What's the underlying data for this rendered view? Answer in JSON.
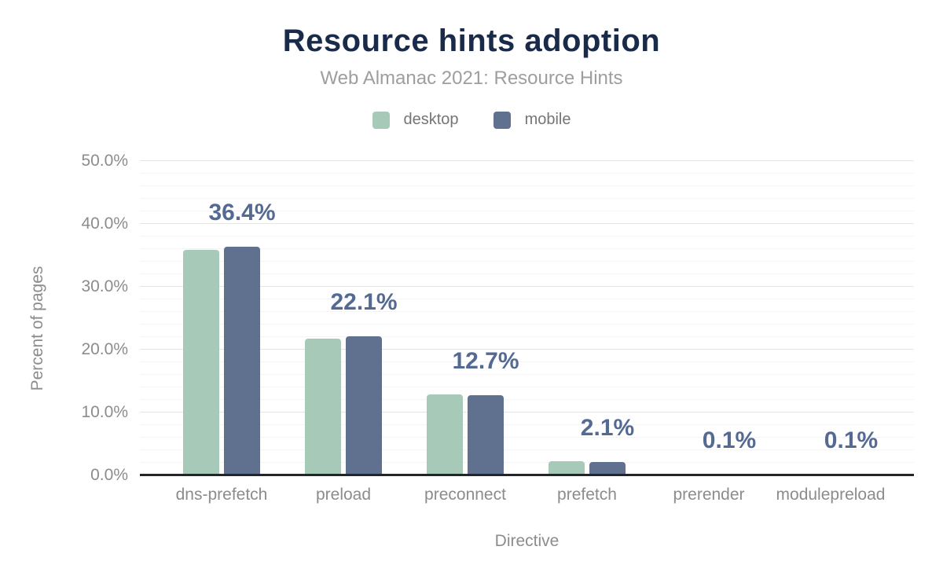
{
  "chart": {
    "title": "Resource hints adoption",
    "subtitle": "Web Almanac 2021: Resource Hints",
    "x_axis_title": "Directive",
    "y_axis_title": "Percent of pages"
  },
  "legend": {
    "items": [
      {
        "label": "desktop",
        "color": "#a7c9b8"
      },
      {
        "label": "mobile",
        "color": "#5f718f"
      }
    ]
  },
  "chart_data": {
    "type": "bar",
    "title": "Resource hints adoption",
    "subtitle": "Web Almanac 2021: Resource Hints",
    "categories": [
      "dns-prefetch",
      "preload",
      "preconnect",
      "prefetch",
      "prerender",
      "modulepreload"
    ],
    "series": [
      {
        "name": "desktop",
        "color": "#a7c9b8",
        "values": [
          35.9,
          21.7,
          12.9,
          2.3,
          0.1,
          0.1
        ]
      },
      {
        "name": "mobile",
        "color": "#5f718f",
        "values": [
          36.4,
          22.1,
          12.7,
          2.1,
          0.1,
          0.1
        ]
      }
    ],
    "value_labels": [
      "36.4%",
      "22.1%",
      "12.7%",
      "2.1%",
      "0.1%",
      "0.1%"
    ],
    "value_labels_source": "mobile series, shown above mobile bar",
    "xlabel": "Directive",
    "ylabel": "Percent of pages",
    "ylim": [
      0,
      50
    ],
    "y_ticks": [
      "0.0%",
      "10.0%",
      "20.0%",
      "30.0%",
      "40.0%",
      "50.0%"
    ],
    "y_tick_values": [
      0,
      10,
      20,
      30,
      40,
      50
    ],
    "grid": "horizontal; major every 10%, minor every 2%",
    "legend_position": "top-center"
  },
  "colors": {
    "title": "#1a2b49",
    "subtitle": "#9e9e9e",
    "legend_text": "#757575",
    "axis_text": "#8c8c8c",
    "value_label": "#546a92",
    "grid_major": "#e4e4e4",
    "grid_minor": "#f4f4f4",
    "axis_line": "#22252a",
    "background": "#ffffff"
  }
}
